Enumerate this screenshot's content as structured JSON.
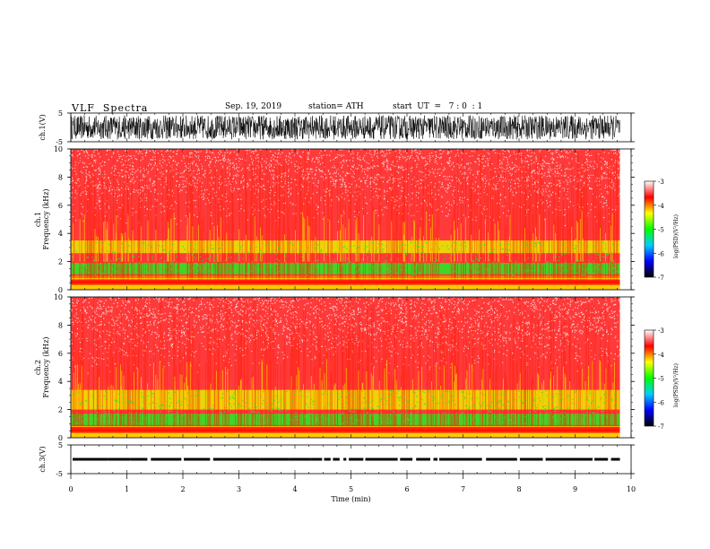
{
  "header": {
    "title": "VLF  Spectra",
    "date": "Sep. 19, 2019",
    "station": "station= ATH",
    "start_ut": "start  UT  =   7 : 0  : 1"
  },
  "chart_data": {
    "type": "heatmap",
    "panels": [
      {
        "id": "ch1-waveform",
        "type": "line",
        "ylabel": "ch.1(V)",
        "ylim": [
          -5,
          5
        ],
        "yticks": [
          "5",
          "-5"
        ],
        "description_level": "dense noise filling most of the range"
      },
      {
        "id": "ch1-spectrogram",
        "type": "heatmap",
        "ylabel": "ch.1\nFrequency  (kHz)",
        "ylim": [
          0,
          10
        ],
        "yticks": [
          "0",
          "2",
          "4",
          "6",
          "8",
          "10"
        ],
        "bands": [
          {
            "f_low": 0.0,
            "f_high": 0.35,
            "color": "#ffe100"
          },
          {
            "f_low": 0.35,
            "f_high": 0.7,
            "color": "#ff2000"
          },
          {
            "f_low": 0.7,
            "f_high": 1.0,
            "color": "#ff8c00"
          },
          {
            "f_low": 1.1,
            "f_high": 1.9,
            "color": "#22ee22"
          },
          {
            "f_low": 2.6,
            "f_high": 3.5,
            "color": "#e8f000"
          },
          {
            "f_low": 4.0,
            "f_high": 10.0,
            "color": "#ff3a3a"
          }
        ]
      },
      {
        "id": "ch2-spectrogram",
        "type": "heatmap",
        "ylabel": "ch.2\nFrequency  (kHz)",
        "ylim": [
          0,
          10
        ],
        "yticks": [
          "0",
          "2",
          "4",
          "6",
          "8",
          "10"
        ],
        "bands": [
          {
            "f_low": 0.0,
            "f_high": 0.35,
            "color": "#ffe100"
          },
          {
            "f_low": 0.35,
            "f_high": 0.8,
            "color": "#ff2000"
          },
          {
            "f_low": 0.9,
            "f_high": 1.7,
            "color": "#22ee22"
          },
          {
            "f_low": 2.0,
            "f_high": 3.4,
            "color": "#e8f000"
          },
          {
            "f_low": 4.0,
            "f_high": 10.0,
            "color": "#ff3a3a"
          }
        ]
      },
      {
        "id": "ch3-waveform",
        "type": "line",
        "ylabel": "ch.3(V)",
        "ylim": [
          -5,
          5
        ],
        "yticks": [
          "5",
          "-5"
        ],
        "level": 0
      }
    ],
    "xaxis": {
      "label": "Time  (min)",
      "range": [
        0,
        10
      ],
      "ticks": [
        "0",
        "1",
        "2",
        "3",
        "4",
        "5",
        "6",
        "7",
        "8",
        "9",
        "10"
      ],
      "data_end": 9.8
    },
    "colorbar": {
      "label": "log(PSD)(V²/Hz)",
      "range": [
        -7,
        -3
      ],
      "ticks": [
        "-3",
        "-4",
        "-5",
        "-6",
        "-7"
      ],
      "colors": [
        "#000000",
        "#0000ff",
        "#00ccff",
        "#00ff00",
        "#ffff00",
        "#ff0000",
        "#ffffff"
      ]
    }
  }
}
